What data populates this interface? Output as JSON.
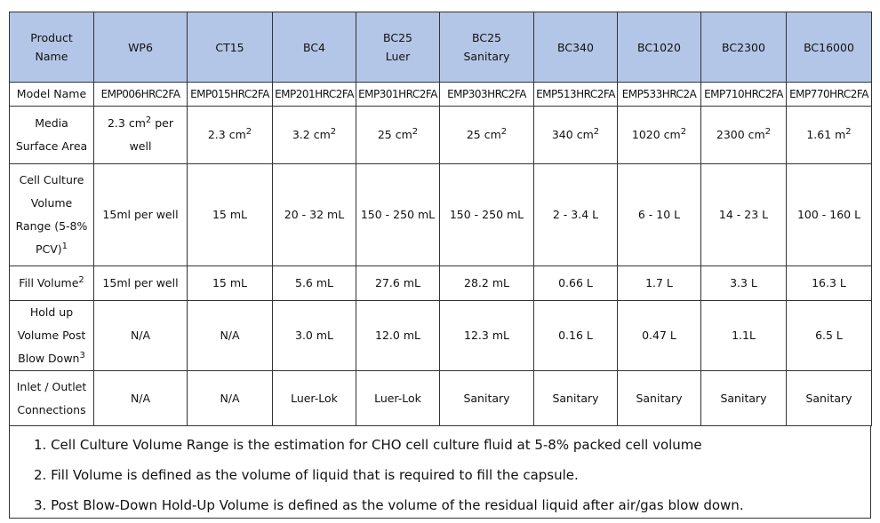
{
  "header": {
    "label": "Product Name",
    "products": [
      "WP6",
      "CT15",
      "BC4",
      "BC25 Luer",
      "BC25 Sanitary",
      "BC340",
      "BC1020",
      "BC2300",
      "BC16000"
    ]
  },
  "rows": [
    {
      "label": {
        "text": "Model Name"
      },
      "cells": [
        "EMP006HRC2FA",
        "EMP015HRC2FA",
        "EMP201HRC2FA",
        "EMP301HRC2FA",
        "EMP303HRC2FA",
        "EMP513HRC2FA",
        "EMP533HRC2A",
        "EMP710HRC2FA",
        "EMP770HRC2FA"
      ]
    },
    {
      "label": {
        "text": "Media Surface Area"
      },
      "cells": [
        {
          "text": "2.3 cm",
          "sup": "2",
          "after": " per well"
        },
        {
          "text": "2.3 cm",
          "sup": "2"
        },
        {
          "text": "3.2 cm",
          "sup": "2"
        },
        {
          "text": "25 cm",
          "sup": "2"
        },
        {
          "text": "25 cm",
          "sup": "2"
        },
        {
          "text": "340 cm",
          "sup": "2"
        },
        {
          "text": "1020 cm",
          "sup": "2"
        },
        {
          "text": "2300 cm",
          "sup": "2"
        },
        {
          "text": "1.61 m",
          "sup": "2"
        }
      ]
    },
    {
      "label": {
        "text": "Cell Culture Volume Range (5-8% PCV)",
        "sup": "1"
      },
      "cells": [
        "15ml per well",
        "15 mL",
        "20 - 32 mL",
        "150 - 250 mL",
        "150 - 250 mL",
        "2 - 3.4 L",
        "6 - 10 L",
        "14 - 23 L",
        "100 - 160 L"
      ]
    },
    {
      "label": {
        "text": "Fill Volume",
        "sup": "2"
      },
      "cells": [
        "15ml per well",
        "15 mL",
        "5.6 mL",
        "27.6 mL",
        "28.2 mL",
        "0.66 L",
        "1.7 L",
        "3.3 L",
        "16.3 L"
      ]
    },
    {
      "label": {
        "text": "Hold up Volume Post Blow Down",
        "sup": "3"
      },
      "cells": [
        "N/A",
        "N/A",
        "3.0 mL",
        "12.0 mL",
        "12.3 mL",
        "0.16 L",
        "0.47 L",
        "1.1L",
        "6.5 L"
      ]
    },
    {
      "label": {
        "text": "Inlet / Outlet Connections"
      },
      "cells": [
        "N/A",
        "N/A",
        "Luer-Lok",
        "Luer-Lok",
        "Sanitary",
        "Sanitary",
        "Sanitary",
        "Sanitary",
        "Sanitary"
      ]
    }
  ],
  "notes": [
    "1. Cell Culture Volume Range is the estimation for CHO cell culture fluid at 5-8% packed cell volume",
    "2. Fill Volume is defined as the volume of liquid that is required to fill the capsule.",
    "3. Post Blow-Down Hold-Up Volume is defined as the volume of the residual liquid after air/gas blow down."
  ]
}
